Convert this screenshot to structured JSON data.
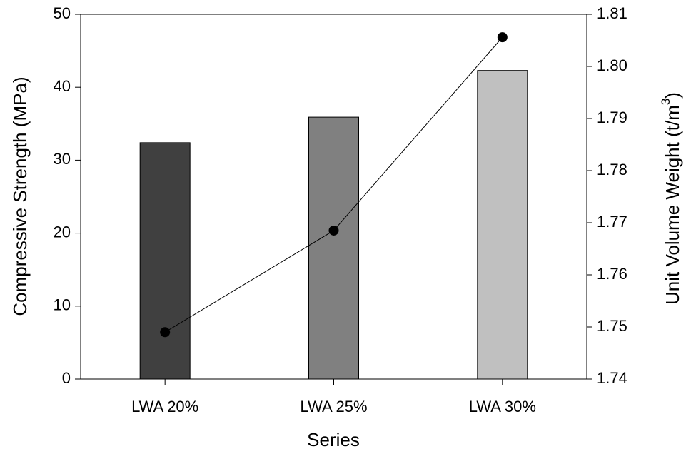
{
  "chart_data": {
    "type": "bar",
    "categories": [
      "LWA 20%",
      "LWA 25%",
      "LWA 30%"
    ],
    "series": [
      {
        "type": "bar",
        "colors": [
          "#404040",
          "#808080",
          "#c0c0c0"
        ],
        "values": [
          32.4,
          35.9,
          42.3
        ]
      },
      {
        "type": "line",
        "axis": "y2",
        "color": "#000000",
        "values": [
          1.749,
          1.7685,
          1.8056
        ]
      }
    ],
    "xlabel": "Series",
    "ylabel": "Compressive Strength (MPa)",
    "y2label": {
      "text": "Unit Volume Weight (t/m",
      "sup": "3",
      "end": ")"
    },
    "ylim": [
      0,
      50
    ],
    "yticks": [
      0,
      10,
      20,
      30,
      40,
      50
    ],
    "y2lim": [
      1.74,
      1.81
    ],
    "y2ticks": [
      1.74,
      1.75,
      1.76,
      1.77,
      1.78,
      1.79,
      {
        "value": 1.8,
        "label": "1.80"
      },
      1.81
    ]
  }
}
